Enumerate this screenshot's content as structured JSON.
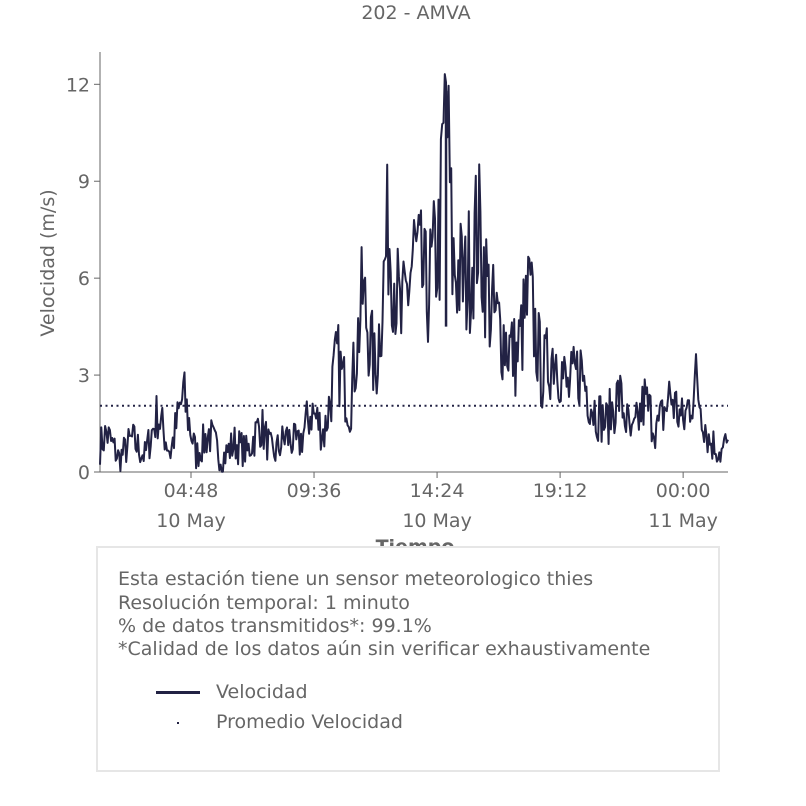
{
  "chart_data": {
    "type": "line",
    "title": "202 - AMVA",
    "xlabel": "Tiempo",
    "ylabel": "Velocidad (m/s)",
    "ylim": [
      0,
      13
    ],
    "yticks": [
      0,
      3,
      6,
      9,
      12
    ],
    "xlim": [
      "2024-05-10 01:15",
      "2024-05-11 01:45"
    ],
    "xticks": [
      {
        "time": "2024-05-10 04:48",
        "label": "04:48",
        "sublabel": "10 May"
      },
      {
        "time": "2024-05-10 09:36",
        "label": "09:36",
        "sublabel": ""
      },
      {
        "time": "2024-05-10 14:24",
        "label": "14:24",
        "sublabel": "10 May"
      },
      {
        "time": "2024-05-10 19:12",
        "label": "19:12",
        "sublabel": ""
      },
      {
        "time": "2024-05-11 00:00",
        "label": "00:00",
        "sublabel": "11 May"
      }
    ],
    "series": [
      {
        "name": "Velocidad",
        "style": "solid",
        "color": "#222244",
        "x": [
          "2024-05-10 01:15",
          "2024-05-10 01:30",
          "2024-05-10 02:00",
          "2024-05-10 02:30",
          "2024-05-10 03:00",
          "2024-05-10 03:30",
          "2024-05-10 04:00",
          "2024-05-10 04:30",
          "2024-05-10 05:00",
          "2024-05-10 05:30",
          "2024-05-10 06:00",
          "2024-05-10 06:30",
          "2024-05-10 07:00",
          "2024-05-10 07:30",
          "2024-05-10 08:00",
          "2024-05-10 08:30",
          "2024-05-10 09:00",
          "2024-05-10 09:30",
          "2024-05-10 10:00",
          "2024-05-10 10:30",
          "2024-05-10 11:00",
          "2024-05-10 11:30",
          "2024-05-10 12:00",
          "2024-05-10 12:30",
          "2024-05-10 13:00",
          "2024-05-10 13:30",
          "2024-05-10 14:00",
          "2024-05-10 14:30",
          "2024-05-10 14:45",
          "2024-05-10 15:00",
          "2024-05-10 15:30",
          "2024-05-10 16:00",
          "2024-05-10 16:30",
          "2024-05-10 17:00",
          "2024-05-10 17:30",
          "2024-05-10 18:00",
          "2024-05-10 18:30",
          "2024-05-10 19:00",
          "2024-05-10 19:30",
          "2024-05-10 20:00",
          "2024-05-10 20:30",
          "2024-05-10 21:00",
          "2024-05-10 21:30",
          "2024-05-10 22:00",
          "2024-05-10 22:30",
          "2024-05-10 23:00",
          "2024-05-10 23:30",
          "2024-05-11 00:00",
          "2024-05-11 00:30",
          "2024-05-11 01:00",
          "2024-05-11 01:30",
          "2024-05-11 01:45"
        ],
        "values": [
          0.8,
          1.2,
          0.4,
          1.0,
          0.5,
          1.8,
          0.6,
          2.4,
          0.5,
          1.2,
          0.4,
          0.9,
          0.6,
          1.5,
          0.5,
          1.1,
          0.8,
          1.9,
          1.2,
          3.5,
          2.0,
          5.5,
          3.0,
          7.6,
          4.5,
          6.8,
          5.5,
          7.2,
          11.8,
          6.5,
          5.8,
          7.6,
          5.0,
          4.2,
          3.5,
          5.5,
          3.0,
          3.8,
          2.5,
          3.2,
          2.0,
          1.5,
          2.4,
          1.0,
          2.2,
          1.3,
          2.4,
          1.5,
          2.8,
          1.0,
          0.6,
          1.0
        ]
      },
      {
        "name": "Promedio Velocidad",
        "style": "dotted",
        "color": "#222244",
        "value": 2.05
      }
    ],
    "grid": false,
    "legend": "bottom-box"
  },
  "info": {
    "lines": [
      "Esta estación tiene un sensor meteorologico thies",
      "Resolución temporal: 1 minuto",
      "% de datos transmitidos*: 99.1%",
      "*Calidad de los datos aún sin verificar exhaustivamente"
    ],
    "legend": [
      {
        "label": "Velocidad",
        "style": "solid"
      },
      {
        "label": "Promedio Velocidad",
        "style": "dotted"
      }
    ]
  }
}
